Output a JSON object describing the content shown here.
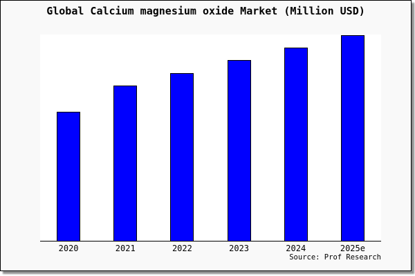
{
  "title": "Global Calcium magnesium oxide Market (Million USD)",
  "source_note": "Source: Prof Research",
  "colors": {
    "card_bg": "#f9f9f9",
    "card_border": "#000000",
    "card_shadow": "#8f8f8f",
    "plot_bg": "#ffffff",
    "axis": "#000000",
    "bar_fill": "#0000ff",
    "bar_border": "#000000",
    "text": "#000000"
  },
  "chart_data": {
    "type": "bar",
    "title": "Global Calcium magnesium oxide Market (Million USD)",
    "categories": [
      "2020",
      "2021",
      "2022",
      "2023",
      "2024",
      "2025e"
    ],
    "values": [
      187,
      225,
      243,
      262,
      280,
      298
    ],
    "values_note": "No y-axis scale or data labels are shown in the chart; values are relative bar heights (pixels above baseline), 2025e being the tallest.",
    "xlabel": "",
    "ylabel": "",
    "y_axis_ticks": "none",
    "grid": false,
    "legend": false,
    "bar_color": "#0000ff",
    "bar_edge_color": "#000000",
    "annotations": [
      "Source: Prof Research"
    ]
  }
}
